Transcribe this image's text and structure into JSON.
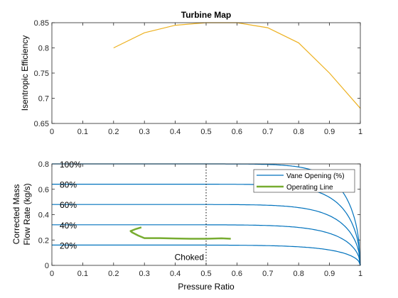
{
  "chart_data": [
    {
      "type": "line",
      "title": "Turbine Map",
      "xlabel": "",
      "ylabel": "Isentropic Efficiency",
      "xlim": [
        0,
        1
      ],
      "ylim": [
        0.65,
        0.85
      ],
      "xticks": [
        "0",
        "0.1",
        "0.2",
        "0.3",
        "0.4",
        "0.5",
        "0.6",
        "0.7",
        "0.8",
        "0.9",
        "1"
      ],
      "yticks": [
        "0.65",
        "0.7",
        "0.75",
        "0.8",
        "0.85"
      ],
      "grid": false,
      "color": "#EDB120",
      "series": [
        {
          "x": [
            0.2,
            0.3,
            0.4,
            0.5,
            0.6,
            0.7,
            0.8,
            0.9,
            1.0
          ],
          "y": [
            0.8,
            0.83,
            0.845,
            0.85,
            0.85,
            0.84,
            0.81,
            0.75,
            0.68
          ]
        }
      ]
    },
    {
      "type": "line",
      "title": "",
      "xlabel": "Pressure Ratio",
      "ylabel": "Corrected Mass Flow Rate (kg/s)",
      "ylabel_lines": [
        "Corrected Mass",
        "Flow Rate (kg/s)"
      ],
      "xlim": [
        0,
        1
      ],
      "ylim": [
        0,
        0.8
      ],
      "xticks": [
        "0",
        "0.1",
        "0.2",
        "0.3",
        "0.4",
        "0.5",
        "0.6",
        "0.7",
        "0.8",
        "0.9",
        "1"
      ],
      "yticks": [
        "0",
        "0.2",
        "0.4",
        "0.6",
        "0.8"
      ],
      "grid": false,
      "legend": {
        "position": "top-right",
        "entries": [
          {
            "label": "Vane Opening (%)",
            "color": "#0072BD"
          },
          {
            "label": "Operating Line",
            "color": "#77AC30"
          }
        ]
      },
      "vane_openings": [
        {
          "label": "100%",
          "flow": 0.8
        },
        {
          "label": "80%",
          "flow": 0.64
        },
        {
          "label": "60%",
          "flow": 0.48
        },
        {
          "label": "40%",
          "flow": 0.32
        },
        {
          "label": "20%",
          "flow": 0.16
        }
      ],
      "vane_color": "#0072BD",
      "choked_line": {
        "x": 0.5,
        "label": "Choked"
      },
      "operating_line": {
        "color": "#77AC30",
        "x": [
          0.29,
          0.27,
          0.255,
          0.26,
          0.28,
          0.3,
          0.35,
          0.4,
          0.45,
          0.5,
          0.55,
          0.58
        ],
        "y": [
          0.3,
          0.285,
          0.27,
          0.26,
          0.235,
          0.215,
          0.215,
          0.212,
          0.21,
          0.21,
          0.213,
          0.21
        ]
      }
    }
  ]
}
